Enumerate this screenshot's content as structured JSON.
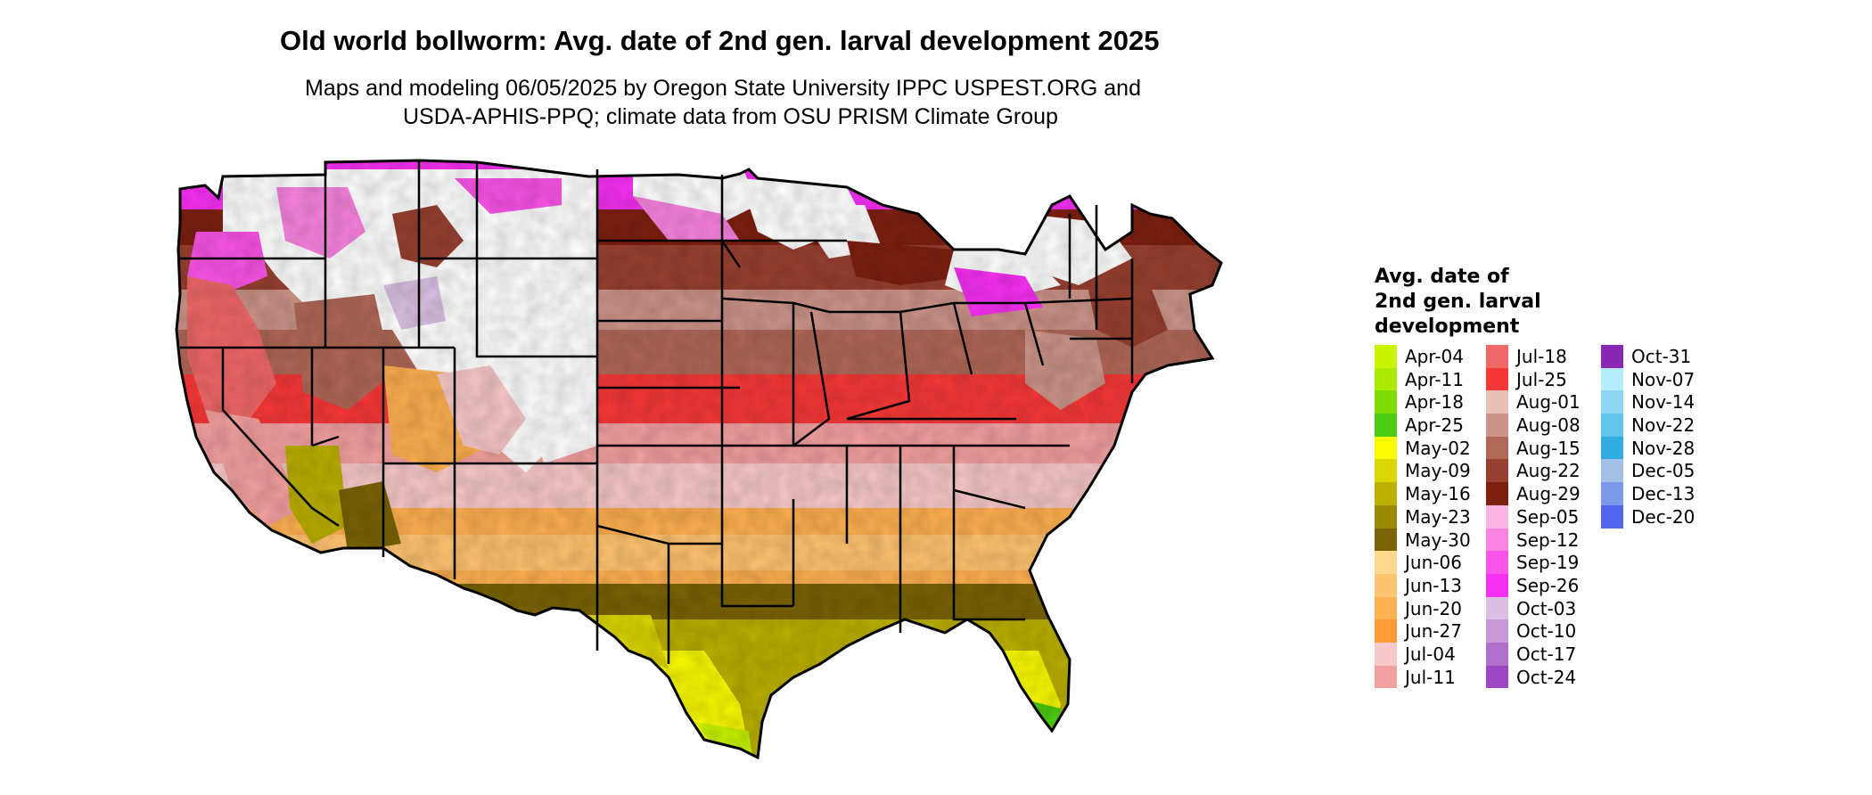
{
  "title": "Old world bollworm: Avg. date of 2nd gen. larval development 2025",
  "subtitle_line1": "Maps and modeling 06/05/2025 by Oregon State University IPPC USPEST.ORG and",
  "subtitle_line2": "USDA-APHIS-PPQ; climate data from OSU PRISM Climate Group",
  "legend": {
    "title_line1": "Avg. date of",
    "title_line2": "2nd gen. larval",
    "title_line3": "development",
    "columns": [
      [
        {
          "label": "Apr-04",
          "color": "#c8f400"
        },
        {
          "label": "Apr-11",
          "color": "#a9ea00"
        },
        {
          "label": "Apr-18",
          "color": "#7fdc00"
        },
        {
          "label": "Apr-25",
          "color": "#4ccc10"
        },
        {
          "label": "May-02",
          "color": "#fafa00"
        },
        {
          "label": "May-09",
          "color": "#dad600"
        },
        {
          "label": "May-16",
          "color": "#bbb000"
        },
        {
          "label": "May-23",
          "color": "#9a8a00"
        },
        {
          "label": "May-30",
          "color": "#7a6405"
        },
        {
          "label": "Jun-06",
          "color": "#ffd890"
        },
        {
          "label": "Jun-13",
          "color": "#ffc470"
        },
        {
          "label": "Jun-20",
          "color": "#ffb050"
        },
        {
          "label": "Jun-27",
          "color": "#ff9c38"
        },
        {
          "label": "Jul-04",
          "color": "#f8c8c8"
        },
        {
          "label": "Jul-11",
          "color": "#f4a0a0"
        }
      ],
      [
        {
          "label": "Jul-18",
          "color": "#f06868"
        },
        {
          "label": "Jul-25",
          "color": "#f83838"
        },
        {
          "label": "Aug-01",
          "color": "#e8c0b8"
        },
        {
          "label": "Aug-08",
          "color": "#cc9488"
        },
        {
          "label": "Aug-15",
          "color": "#b06858"
        },
        {
          "label": "Aug-22",
          "color": "#984030"
        },
        {
          "label": "Aug-29",
          "color": "#7e2010"
        },
        {
          "label": "Sep-05",
          "color": "#fab4e4"
        },
        {
          "label": "Sep-12",
          "color": "#fa84e0"
        },
        {
          "label": "Sep-19",
          "color": "#fa54e8"
        },
        {
          "label": "Sep-26",
          "color": "#f830f4"
        },
        {
          "label": "Oct-03",
          "color": "#dcc0e4"
        },
        {
          "label": "Oct-10",
          "color": "#c898d8"
        },
        {
          "label": "Oct-17",
          "color": "#b070cc"
        },
        {
          "label": "Oct-24",
          "color": "#9c48c4"
        }
      ],
      [
        {
          "label": "Oct-31",
          "color": "#8828b4"
        },
        {
          "label": "Nov-07",
          "color": "#b4ecfc"
        },
        {
          "label": "Nov-14",
          "color": "#8cd8f4"
        },
        {
          "label": "Nov-22",
          "color": "#60c4ec"
        },
        {
          "label": "Nov-28",
          "color": "#30ace0"
        },
        {
          "label": "Dec-05",
          "color": "#a4c0e8"
        },
        {
          "label": "Dec-13",
          "color": "#7c98e8"
        },
        {
          "label": "Dec-20",
          "color": "#5064f0"
        }
      ]
    ]
  }
}
